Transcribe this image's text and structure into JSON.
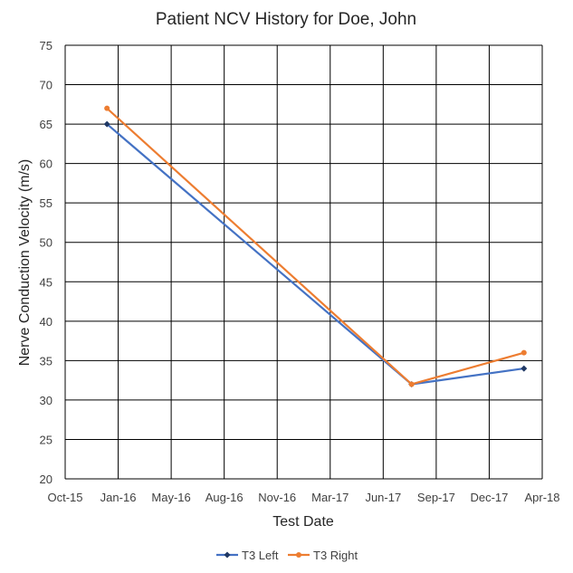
{
  "chart_data": {
    "type": "line",
    "title": "Patient NCV History for Doe, John",
    "xlabel": "Test Date",
    "ylabel": "Nerve Conduction Velocity (m/s)",
    "ylim": [
      20,
      75
    ],
    "yticks": [
      "20",
      "25",
      "30",
      "35",
      "40",
      "45",
      "50",
      "55",
      "60",
      "65",
      "70",
      "75"
    ],
    "xlim": [
      "2015-10-01",
      "2018-04-01"
    ],
    "xticks": [
      "Oct-15",
      "Jan-16",
      "May-16",
      "Aug-16",
      "Nov-16",
      "Mar-17",
      "Jun-17",
      "Sep-17",
      "Dec-17",
      "Apr-18"
    ],
    "grid": true,
    "legend": "bottom",
    "series": [
      {
        "name": "T3 Left",
        "color": "#4472C4",
        "marker": "diamond",
        "x": [
          "2015-12-20",
          "2017-07-25",
          "2018-02-25"
        ],
        "y": [
          65,
          32,
          34
        ]
      },
      {
        "name": "T3 Right",
        "color": "#ED7D31",
        "marker": "circle",
        "x": [
          "2015-12-20",
          "2017-07-25",
          "2018-02-25"
        ],
        "y": [
          67,
          32,
          36
        ]
      }
    ]
  }
}
